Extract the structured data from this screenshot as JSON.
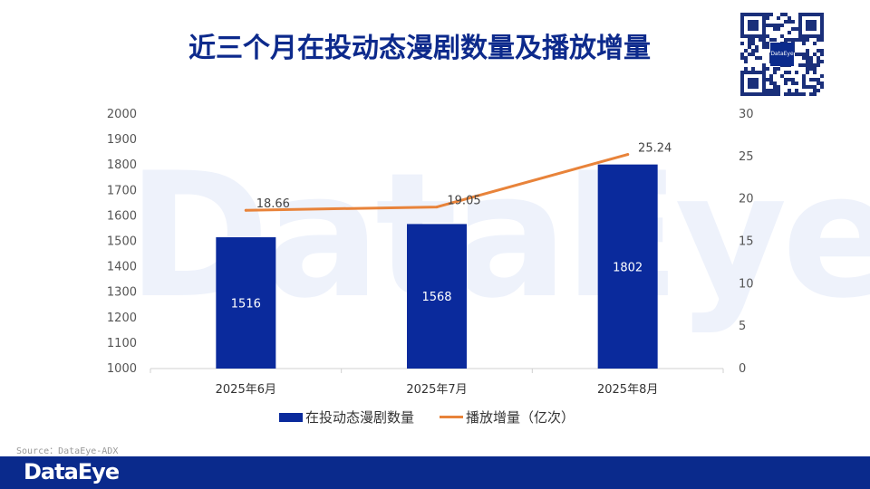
{
  "header": {
    "title": "近三个月在投动态漫剧数量及播放增量"
  },
  "watermark": {
    "text": "DataEye"
  },
  "qr": {
    "logo_text": "DataEye"
  },
  "chart_data": {
    "type": "bar",
    "categories": [
      "2025年6月",
      "2025年7月",
      "2025年8月"
    ],
    "series": [
      {
        "name": "在投动态漫剧数量",
        "type": "bar",
        "axis": "left",
        "values": [
          1516,
          1568,
          1802
        ],
        "color": "#0a2a9c"
      },
      {
        "name": "播放增量（亿次）",
        "type": "line",
        "axis": "right",
        "values": [
          18.66,
          19.05,
          25.24
        ],
        "color": "#e8833a"
      }
    ],
    "y_left": {
      "min": 1000,
      "max": 2000,
      "step": 100
    },
    "y_right": {
      "min": 0,
      "max": 30,
      "step": 5
    },
    "data_labels": {
      "bars": [
        "1516",
        "1568",
        "1802"
      ],
      "line": [
        "18.66",
        "19.05",
        "25.24"
      ]
    },
    "legend_position": "bottom",
    "grid": false
  },
  "legend": {
    "bar_label": "在投动态漫剧数量",
    "line_label": "播放增量（亿次）"
  },
  "footer": {
    "source": "Source：DataEye-ADX",
    "logo": "DataEye"
  }
}
